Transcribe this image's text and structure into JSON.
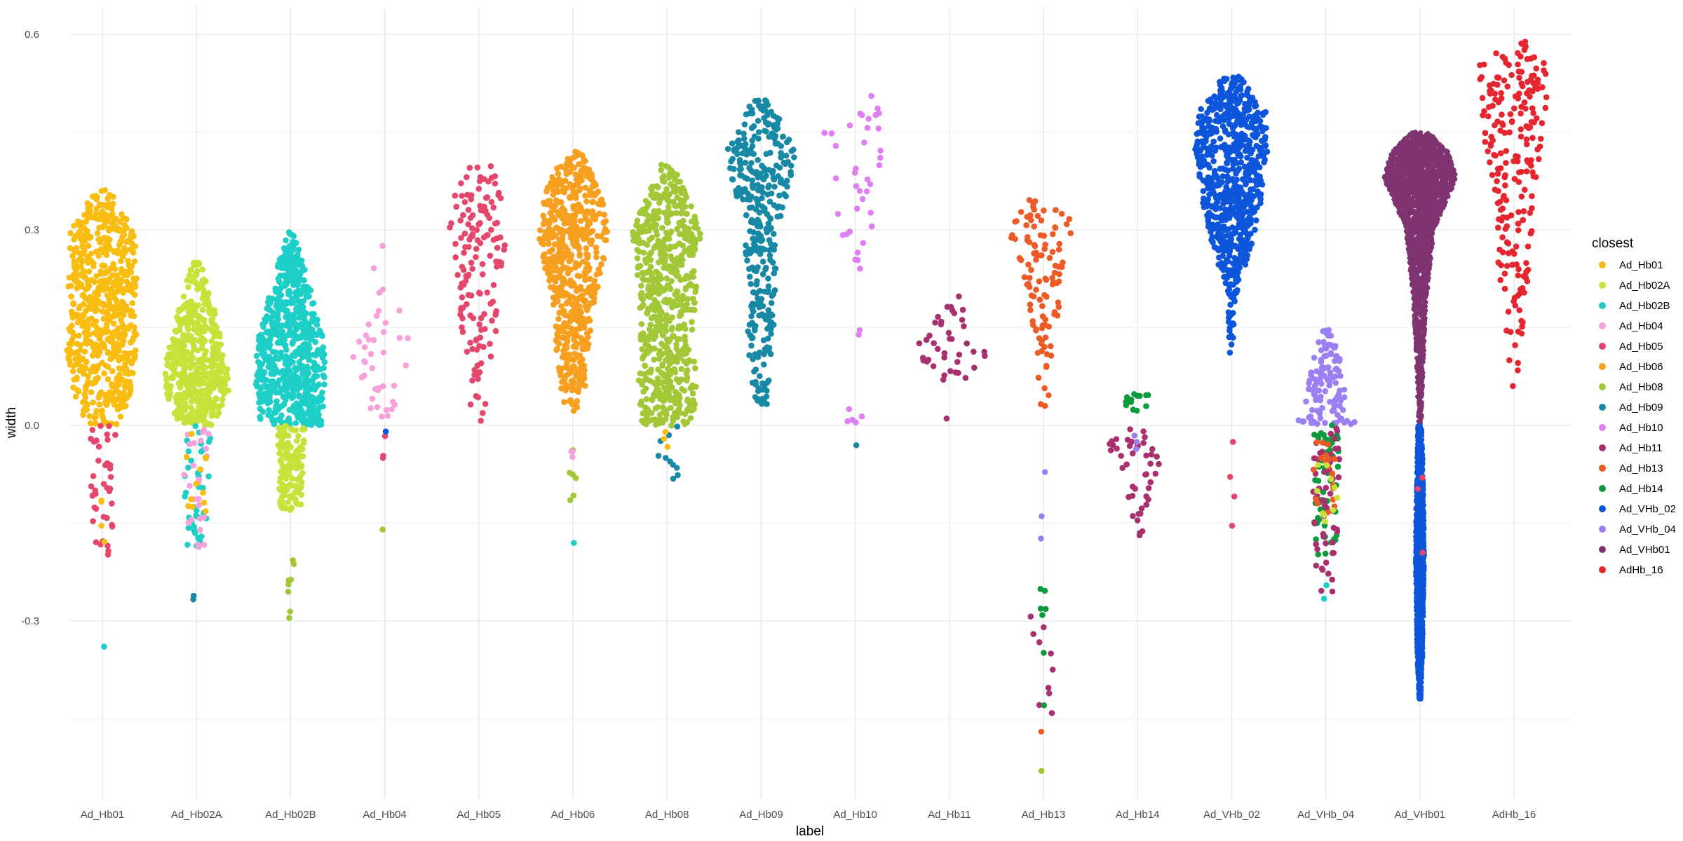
{
  "chart_data": {
    "type": "scatter",
    "style": "beeswarm",
    "xlabel": "label",
    "ylabel": "width",
    "ylim": [
      -0.55,
      0.64
    ],
    "y_ticks": [
      -0.3,
      0.0,
      0.3,
      0.6
    ],
    "y_tick_labels": [
      "-0.3",
      "0.0",
      "0.3",
      "0.6"
    ],
    "grid": true,
    "categories": [
      "Ad_Hb01",
      "Ad_Hb02A",
      "Ad_Hb02B",
      "Ad_Hb04",
      "Ad_Hb05",
      "Ad_Hb06",
      "Ad_Hb08",
      "Ad_Hb09",
      "Ad_Hb10",
      "Ad_Hb11",
      "Ad_Hb13",
      "Ad_Hb14",
      "Ad_VHb_02",
      "Ad_VHb_04",
      "Ad_VHb01",
      "AdHb_16"
    ],
    "legend": {
      "title": "closest",
      "placement": "right",
      "entries": [
        {
          "name": "Ad_Hb01",
          "color": "#F8BD10"
        },
        {
          "name": "Ad_Hb02A",
          "color": "#C6E33A"
        },
        {
          "name": "Ad_Hb02B",
          "color": "#1DCFC6"
        },
        {
          "name": "Ad_Hb04",
          "color": "#F7A1DA"
        },
        {
          "name": "Ad_Hb05",
          "color": "#E5466B"
        },
        {
          "name": "Ad_Hb06",
          "color": "#F79F1E"
        },
        {
          "name": "Ad_Hb08",
          "color": "#A2C837"
        },
        {
          "name": "Ad_Hb09",
          "color": "#1789A5"
        },
        {
          "name": "Ad_Hb10",
          "color": "#DE7FF2"
        },
        {
          "name": "Ad_Hb11",
          "color": "#A8306F"
        },
        {
          "name": "Ad_Hb13",
          "color": "#EE5A26"
        },
        {
          "name": "Ad_Hb14",
          "color": "#0B9B3C"
        },
        {
          "name": "Ad_VHb_02",
          "color": "#0D55DA"
        },
        {
          "name": "Ad_VHb_04",
          "color": "#9C80F2"
        },
        {
          "name": "Ad_VHb01",
          "color": "#7F3370"
        },
        {
          "name": "AdHb_16",
          "color": "#E5252F"
        }
      ]
    },
    "groups": [
      {
        "label": "Ad_Hb01",
        "n": 650,
        "main_color": "#F8BD10",
        "main_range": [
          0.0,
          0.36
        ],
        "profile": [
          [
            0.0,
            0.4
          ],
          [
            0.05,
            0.7
          ],
          [
            0.12,
            0.9
          ],
          [
            0.18,
            0.75
          ],
          [
            0.22,
            0.85
          ],
          [
            0.3,
            0.8
          ],
          [
            0.36,
            0.2
          ]
        ],
        "extras": [
          {
            "color": "#E5466B",
            "range": [
              -0.2,
              0.0
            ],
            "n": 40
          },
          {
            "color": "#F8BD10",
            "range": [
              -0.26,
              -0.1
            ],
            "n": 4
          },
          {
            "color": "#1DCFC6",
            "range": [
              -0.34,
              -0.34
            ],
            "n": 1
          }
        ]
      },
      {
        "label": "Ad_Hb02A",
        "n": 500,
        "main_color": "#C6E33A",
        "main_range": [
          0.0,
          0.26
        ],
        "profile": [
          [
            0.0,
            0.4
          ],
          [
            0.05,
            0.8
          ],
          [
            0.1,
            0.75
          ],
          [
            0.15,
            0.55
          ],
          [
            0.2,
            0.35
          ],
          [
            0.26,
            0.05
          ]
        ],
        "extras": [
          {
            "color": "#1DCFC6",
            "range": [
              -0.19,
              0.0
            ],
            "n": 40
          },
          {
            "color": "#F7A1DA",
            "range": [
              -0.19,
              0.0
            ],
            "n": 25
          },
          {
            "color": "#F8BD10",
            "range": [
              -0.15,
              0.0
            ],
            "n": 12
          },
          {
            "color": "#1789A5",
            "range": [
              -0.27,
              -0.26
            ],
            "n": 2
          }
        ]
      },
      {
        "label": "Ad_Hb02B",
        "n": 700,
        "main_color": "#1DCFC6",
        "main_range": [
          0.0,
          0.3
        ],
        "profile": [
          [
            0.0,
            0.75
          ],
          [
            0.06,
            0.85
          ],
          [
            0.12,
            0.85
          ],
          [
            0.18,
            0.6
          ],
          [
            0.24,
            0.35
          ],
          [
            0.3,
            0.05
          ]
        ],
        "extras": [
          {
            "color": "#C6E33A",
            "range": [
              -0.13,
              0.0
            ],
            "n": 150
          },
          {
            "color": "#A2C837",
            "range": [
              -0.3,
              -0.19
            ],
            "n": 8
          }
        ]
      },
      {
        "label": "Ad_Hb04",
        "n": 40,
        "main_color": "#F7A1DA",
        "main_range": [
          0.0,
          0.28
        ],
        "profile": [
          [
            0.0,
            0.2
          ],
          [
            0.1,
            0.8
          ],
          [
            0.15,
            0.6
          ],
          [
            0.2,
            0.5
          ],
          [
            0.28,
            0.05
          ]
        ],
        "extras": [
          {
            "color": "#E5466B",
            "range": [
              -0.05,
              -0.01
            ],
            "n": 3
          },
          {
            "color": "#0D55DA",
            "range": [
              -0.01,
              -0.01
            ],
            "n": 1
          },
          {
            "color": "#A2C837",
            "range": [
              -0.16,
              -0.16
            ],
            "n": 1
          }
        ]
      },
      {
        "label": "Ad_Hb05",
        "n": 150,
        "main_color": "#E5466B",
        "main_range": [
          0.0,
          0.4
        ],
        "profile": [
          [
            0.0,
            0.15
          ],
          [
            0.1,
            0.35
          ],
          [
            0.2,
            0.5
          ],
          [
            0.3,
            0.75
          ],
          [
            0.4,
            0.45
          ]
        ],
        "extras": []
      },
      {
        "label": "Ad_Hb06",
        "n": 600,
        "main_color": "#F79F1E",
        "main_range": [
          0.02,
          0.43
        ],
        "profile": [
          [
            0.02,
            0.2
          ],
          [
            0.1,
            0.4
          ],
          [
            0.17,
            0.45
          ],
          [
            0.25,
            0.75
          ],
          [
            0.3,
            0.85
          ],
          [
            0.36,
            0.7
          ],
          [
            0.43,
            0.1
          ]
        ],
        "extras": [
          {
            "color": "#A2C837",
            "range": [
              -0.16,
              -0.03
            ],
            "n": 6
          },
          {
            "color": "#F7A1DA",
            "range": [
              -0.05,
              -0.03
            ],
            "n": 3
          },
          {
            "color": "#1DCFC6",
            "range": [
              -0.18,
              -0.18
            ],
            "n": 1
          }
        ]
      },
      {
        "label": "Ad_Hb08",
        "n": 650,
        "main_color": "#A2C837",
        "main_range": [
          0.0,
          0.4
        ],
        "profile": [
          [
            0.0,
            0.6
          ],
          [
            0.05,
            0.75
          ],
          [
            0.12,
            0.65
          ],
          [
            0.2,
            0.7
          ],
          [
            0.3,
            0.85
          ],
          [
            0.4,
            0.15
          ]
        ],
        "extras": [
          {
            "color": "#1789A5",
            "range": [
              -0.09,
              0.0
            ],
            "n": 10
          },
          {
            "color": "#F8BD10",
            "range": [
              -0.04,
              0.0
            ],
            "n": 3
          }
        ]
      },
      {
        "label": "Ad_Hb09",
        "n": 350,
        "main_color": "#1789A5",
        "main_range": [
          0.03,
          0.5
        ],
        "profile": [
          [
            0.03,
            0.15
          ],
          [
            0.1,
            0.3
          ],
          [
            0.2,
            0.35
          ],
          [
            0.3,
            0.4
          ],
          [
            0.37,
            0.7
          ],
          [
            0.42,
            0.85
          ],
          [
            0.5,
            0.2
          ]
        ],
        "extras": []
      },
      {
        "label": "Ad_Hb10",
        "n": 45,
        "main_color": "#DE7FF2",
        "main_range": [
          0.0,
          0.52
        ],
        "profile": [
          [
            0.0,
            0.2
          ],
          [
            0.2,
            0.2
          ],
          [
            0.4,
            0.6
          ],
          [
            0.45,
            0.9
          ],
          [
            0.52,
            0.3
          ]
        ],
        "extras": [
          {
            "color": "#1789A5",
            "range": [
              -0.03,
              -0.03
            ],
            "n": 1
          }
        ]
      },
      {
        "label": "Ad_Hb11",
        "n": 40,
        "main_color": "#A8306F",
        "main_range": [
          0.07,
          0.24
        ],
        "profile": [
          [
            0.07,
            0.5
          ],
          [
            0.11,
            0.9
          ],
          [
            0.16,
            0.5
          ],
          [
            0.24,
            0.1
          ]
        ],
        "extras": [
          {
            "color": "#A8306F",
            "range": [
              0.01,
              0.01
            ],
            "n": 1
          }
        ]
      },
      {
        "label": "Ad_Hb13",
        "n": 110,
        "main_color": "#EE5A26",
        "main_range": [
          0.03,
          0.35
        ],
        "profile": [
          [
            0.03,
            0.1
          ],
          [
            0.15,
            0.3
          ],
          [
            0.25,
            0.6
          ],
          [
            0.3,
            0.85
          ],
          [
            0.35,
            0.4
          ]
        ],
        "extras": [
          {
            "color": "#A8306F",
            "range": [
              -0.49,
              -0.2
            ],
            "n": 10
          },
          {
            "color": "#0B9B3C",
            "range": [
              -0.43,
              -0.24
            ],
            "n": 7
          },
          {
            "color": "#9C80F2",
            "range": [
              -0.26,
              -0.03
            ],
            "n": 3
          },
          {
            "color": "#EE5A26",
            "range": [
              -0.47,
              -0.47
            ],
            "n": 1
          },
          {
            "color": "#A2C837",
            "range": [
              -0.53,
              -0.53
            ],
            "n": 1
          }
        ]
      },
      {
        "label": "Ad_Hb14",
        "n": 45,
        "main_color": "#A8306F",
        "main_range": [
          -0.18,
          0.0
        ],
        "profile": [
          [
            -0.18,
            0.1
          ],
          [
            -0.1,
            0.3
          ],
          [
            -0.05,
            0.6
          ],
          [
            -0.02,
            0.8
          ],
          [
            0.0,
            0.4
          ]
        ],
        "extras": [
          {
            "color": "#0B9B3C",
            "range": [
              0.02,
              0.05
            ],
            "n": 14
          },
          {
            "color": "#9C80F2",
            "range": [
              -0.04,
              -0.01
            ],
            "n": 3
          }
        ]
      },
      {
        "label": "Ad_VHb_02",
        "n": 700,
        "main_color": "#0D55DA",
        "main_range": [
          0.11,
          0.54
        ],
        "profile": [
          [
            0.11,
            0.05
          ],
          [
            0.2,
            0.1
          ],
          [
            0.28,
            0.5
          ],
          [
            0.35,
            0.75
          ],
          [
            0.42,
            0.9
          ],
          [
            0.48,
            0.85
          ],
          [
            0.54,
            0.15
          ]
        ],
        "extras": [
          {
            "color": "#E5466B",
            "range": [
              -0.16,
              -0.02
            ],
            "n": 4
          }
        ]
      },
      {
        "label": "Ad_VHb_04",
        "n": 120,
        "main_color": "#9C80F2",
        "main_range": [
          0.0,
          0.15
        ],
        "profile": [
          [
            0.0,
            0.8
          ],
          [
            0.03,
            0.5
          ],
          [
            0.1,
            0.4
          ],
          [
            0.15,
            0.1
          ]
        ],
        "extras": [
          {
            "color": "#0B9B3C",
            "range": [
              -0.2,
              0.0
            ],
            "n": 55
          },
          {
            "color": "#A8306F",
            "range": [
              -0.26,
              0.0
            ],
            "n": 55
          },
          {
            "color": "#EE5A26",
            "range": [
              -0.15,
              -0.02
            ],
            "n": 18
          },
          {
            "color": "#C6E33A",
            "range": [
              -0.15,
              -0.05
            ],
            "n": 10
          },
          {
            "color": "#1DCFC6",
            "range": [
              -0.28,
              -0.23
            ],
            "n": 2
          }
        ]
      },
      {
        "label": "Ad_VHb01",
        "n": 2500,
        "main_color": "#7F3370",
        "main_range": [
          0.0,
          0.45
        ],
        "profile": [
          [
            0.0,
            0.04
          ],
          [
            0.1,
            0.09
          ],
          [
            0.2,
            0.18
          ],
          [
            0.3,
            0.35
          ],
          [
            0.38,
            0.9
          ],
          [
            0.42,
            0.7
          ],
          [
            0.45,
            0.2
          ]
        ],
        "extras": [
          {
            "color": "#0D55DA",
            "range": [
              -0.42,
              0.0
            ],
            "n": 1800,
            "profile": [
              [
                -0.42,
                0.03
              ],
              [
                -0.35,
                0.08
              ],
              [
                -0.2,
                0.12
              ],
              [
                -0.1,
                0.1
              ],
              [
                0.0,
                0.06
              ]
            ]
          },
          {
            "color": "#E5466B",
            "range": [
              -0.27,
              -0.07
            ],
            "n": 3
          }
        ]
      },
      {
        "label": "AdHb_16",
        "n": 220,
        "main_color": "#E5252F",
        "main_range": [
          0.04,
          0.59
        ],
        "profile": [
          [
            0.04,
            0.05
          ],
          [
            0.15,
            0.25
          ],
          [
            0.25,
            0.4
          ],
          [
            0.35,
            0.5
          ],
          [
            0.45,
            0.75
          ],
          [
            0.55,
            0.9
          ],
          [
            0.59,
            0.6
          ]
        ],
        "extras": []
      }
    ]
  }
}
